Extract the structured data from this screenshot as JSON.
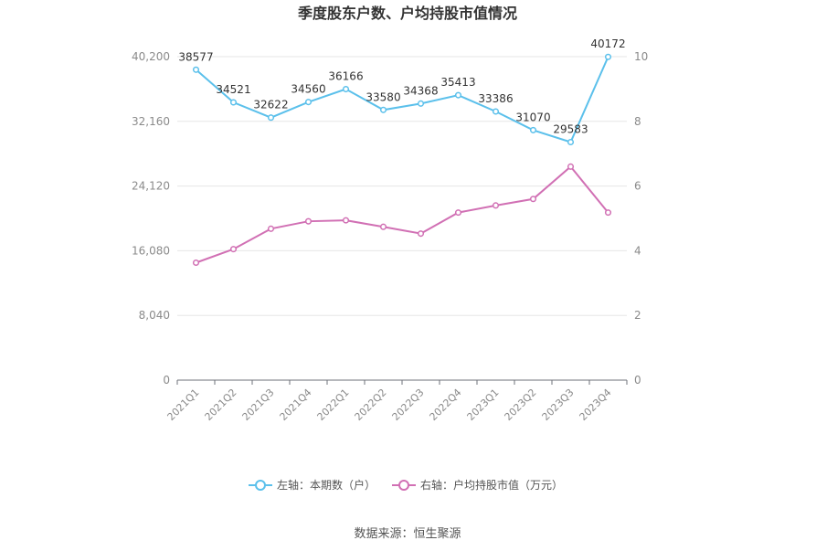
{
  "chart_data": {
    "type": "line",
    "title": "季度股东户数、户均持股市值情况",
    "source": "数据来源：恒生聚源",
    "categories": [
      "2021Q1",
      "2021Q2",
      "2021Q3",
      "2021Q4",
      "2022Q1",
      "2022Q2",
      "2022Q3",
      "2022Q4",
      "2023Q1",
      "2023Q2",
      "2023Q3",
      "2023Q4"
    ],
    "left_axis": {
      "ticks": [
        0,
        8040,
        16080,
        24120,
        32160,
        40200
      ],
      "tick_labels": [
        "0",
        "8,040",
        "16,080",
        "24,120",
        "32,160",
        "40,200"
      ],
      "range": [
        0,
        40200
      ]
    },
    "right_axis": {
      "ticks": [
        0,
        2,
        4,
        6,
        8,
        10
      ],
      "tick_labels": [
        "0",
        "2",
        "4",
        "6",
        "8",
        "10"
      ],
      "range": [
        0,
        10
      ]
    },
    "series": [
      {
        "name": "左轴：本期数（户）",
        "axis": "left",
        "color": "#5bc0eb",
        "values": [
          38577,
          34521,
          32622,
          34560,
          36166,
          33580,
          34368,
          35413,
          33386,
          31070,
          29583,
          40172
        ],
        "labels": [
          "38577",
          "34521",
          "32622",
          "34560",
          "36166",
          "33580",
          "34368",
          "35413",
          "33386",
          "31070",
          "29583",
          "40172"
        ]
      },
      {
        "name": "右轴：户均持股市值（万元）",
        "axis": "right",
        "color": "#d170b4",
        "values": [
          3.63,
          4.05,
          4.68,
          4.91,
          4.94,
          4.74,
          4.53,
          5.18,
          5.4,
          5.6,
          6.6,
          5.18
        ]
      }
    ],
    "grid": true,
    "legend_position": "bottom"
  }
}
